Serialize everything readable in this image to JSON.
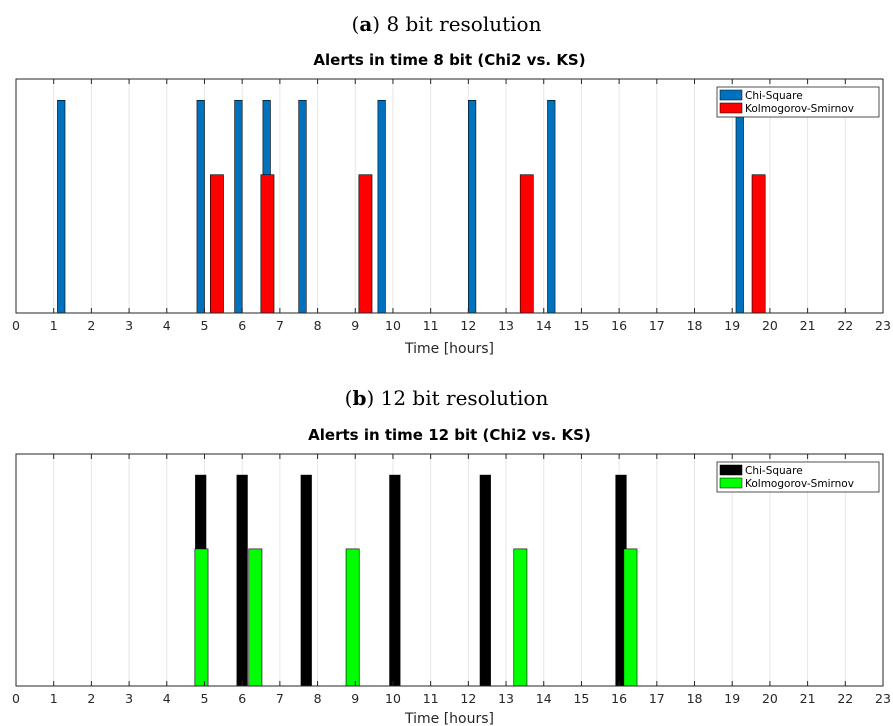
{
  "captions": [
    {
      "letter": "a",
      "text": "8 bit resolution"
    },
    {
      "letter": "b",
      "text": "12 bit resolution"
    }
  ],
  "chart_data": [
    {
      "type": "bar",
      "title": "Alerts in time 8 bit (Chi2 vs. KS)",
      "xlabel": "Time [hours]",
      "ylabel": "",
      "xlim": [
        0,
        23
      ],
      "ylim": [
        0,
        1.1
      ],
      "xticks": [
        0,
        1,
        2,
        3,
        4,
        5,
        6,
        7,
        8,
        9,
        10,
        11,
        12,
        13,
        14,
        15,
        16,
        17,
        18,
        19,
        20,
        21,
        22,
        23
      ],
      "grid": true,
      "legend_position": "top-right",
      "series": [
        {
          "name": "Chi-Square",
          "color": "#0072bd",
          "bar_width": 0.2,
          "height": 1.0,
          "x": [
            1.2,
            4.9,
            5.9,
            6.65,
            7.6,
            9.7,
            12.1,
            14.2,
            19.2
          ]
        },
        {
          "name": "Kolmogorov-Smirnov",
          "color": "#ff0000",
          "bar_width": 0.35,
          "height": 0.65,
          "x": [
            5.33,
            6.67,
            9.27,
            13.55,
            19.7
          ]
        }
      ]
    },
    {
      "type": "bar",
      "title": "Alerts in time 12 bit (Chi2 vs. KS)",
      "xlabel": "Time [hours]",
      "ylabel": "",
      "xlim": [
        0,
        23
      ],
      "ylim": [
        0,
        1.1
      ],
      "xticks": [
        0,
        1,
        2,
        3,
        4,
        5,
        6,
        7,
        8,
        9,
        10,
        11,
        12,
        13,
        14,
        15,
        16,
        17,
        18,
        19,
        20,
        21,
        22,
        23
      ],
      "grid": true,
      "legend_position": "top-right",
      "series": [
        {
          "name": "Chi-Square",
          "color": "#000000",
          "bar_width": 0.28,
          "height": 1.0,
          "x": [
            4.9,
            6.0,
            7.7,
            10.05,
            12.45,
            16.05
          ]
        },
        {
          "name": "Kolmogorov-Smirnov",
          "color": "#00ff00",
          "bar_width": 0.35,
          "height": 0.65,
          "x": [
            4.92,
            6.35,
            8.93,
            13.38,
            16.3
          ]
        }
      ]
    }
  ]
}
